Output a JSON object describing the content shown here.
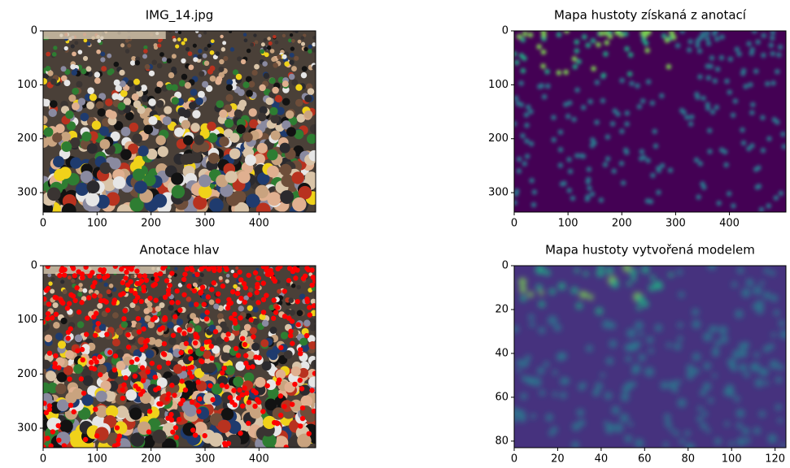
{
  "chart_data": [
    {
      "type": "image",
      "title": "IMG_14.jpg",
      "xlim": [
        0,
        505
      ],
      "ylim": [
        336,
        0
      ],
      "xticks": [
        0,
        100,
        200,
        300,
        400
      ],
      "yticks": [
        0,
        100,
        200,
        300
      ]
    },
    {
      "type": "image",
      "title": "Mapa hustoty získaná z anotací",
      "cmap": "viridis",
      "xlim": [
        0,
        505
      ],
      "ylim": [
        336,
        0
      ],
      "xticks": [
        0,
        100,
        200,
        300,
        400
      ],
      "yticks": [
        0,
        100,
        200,
        300
      ]
    },
    {
      "type": "image",
      "title": "Anotace hlav",
      "marker_color": "#ff0000",
      "xlim": [
        0,
        505
      ],
      "ylim": [
        336,
        0
      ],
      "xticks": [
        0,
        100,
        200,
        300,
        400
      ],
      "yticks": [
        0,
        100,
        200,
        300
      ]
    },
    {
      "type": "image",
      "title": "Mapa hustoty vytvořená modelem",
      "cmap": "viridis",
      "xlim": [
        0,
        125
      ],
      "ylim": [
        83,
        0
      ],
      "xticks": [
        0,
        20,
        40,
        60,
        80,
        100,
        120
      ],
      "yticks": [
        0,
        20,
        40,
        60,
        80
      ]
    }
  ]
}
